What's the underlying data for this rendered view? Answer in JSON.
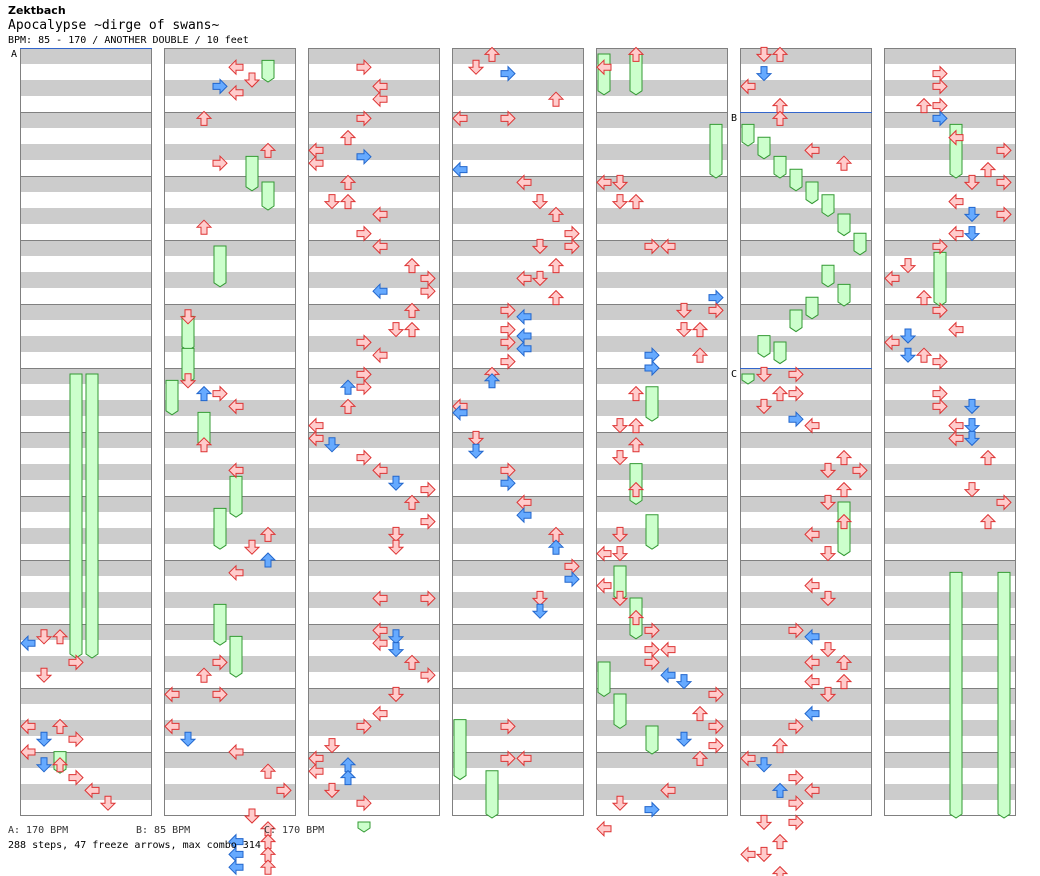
{
  "header": {
    "artist": "Zektbach",
    "title": "Apocalypse ~dirge of swans~",
    "info": "BPM: 85 - 170 / ANOTHER DOUBLE / 10 feet"
  },
  "bpm_changes": [
    {
      "marker": "A",
      "column": 0,
      "measure": 0,
      "bpm": 170
    },
    {
      "marker": "B",
      "column": 5,
      "measure": 1,
      "bpm": 85
    },
    {
      "marker": "C",
      "column": 5,
      "measure": 5,
      "bpm": 170
    }
  ],
  "footer": {
    "bpms": [
      "A: 170 BPM",
      "B: 85 BPM",
      "C: 170 BPM"
    ],
    "stats": "288 steps, 47 freeze arrows, max combo 314"
  },
  "colors": {
    "stripe": "#cccccc",
    "measure_line": "#808080",
    "red_arrow": "#ffcccc",
    "red_outline": "#dd3333",
    "blue_arrow": "#66aaff",
    "blue_outline": "#2266cc",
    "freeze_fill": "#ccffcc",
    "freeze_outline": "#339933",
    "bpm_line": "#3366cc"
  },
  "chart": {
    "columns": 7,
    "measures_per_column": 12,
    "lanes": 8,
    "freezes": [
      [
        3,
        5.0,
        9.5
      ],
      [
        4,
        5.0,
        9.5
      ],
      [
        2,
        10.9,
        11.3
      ],
      [
        6,
        0.1,
        0.5
      ],
      [
        5,
        1.6,
        2.2
      ],
      [
        6,
        2.0,
        2.5
      ],
      [
        3,
        3.0,
        3.7
      ],
      [
        1,
        4.1,
        4.7
      ],
      [
        1,
        4.6,
        5.2
      ],
      [
        0,
        5.1,
        5.7
      ],
      [
        2,
        5.6,
        6.2
      ],
      [
        4,
        6.6,
        7.3
      ],
      [
        3,
        7.1,
        7.8
      ],
      [
        3,
        8.6,
        9.3
      ],
      [
        4,
        9.1,
        9.8
      ],
      [
        3,
        12.0,
        12.2
      ],
      [
        0,
        10.4,
        11.4
      ],
      [
        2,
        11.2,
        12.0
      ],
      [
        0,
        0.0,
        0.7
      ],
      [
        2,
        0.0,
        0.7
      ],
      [
        7,
        1.1,
        2.0
      ],
      [
        3,
        5.2,
        5.8
      ],
      [
        2,
        6.4,
        7.1
      ],
      [
        3,
        7.2,
        7.8
      ],
      [
        1,
        8.0,
        8.6
      ],
      [
        2,
        8.5,
        9.2
      ],
      [
        0,
        9.5,
        10.1
      ],
      [
        1,
        10.0,
        10.6
      ],
      [
        3,
        10.5,
        11.0
      ],
      [
        0,
        1.1,
        1.5
      ],
      [
        1,
        1.3,
        1.7
      ],
      [
        2,
        1.6,
        2.0
      ],
      [
        3,
        1.8,
        2.2
      ],
      [
        4,
        2.0,
        2.4
      ],
      [
        5,
        2.2,
        2.6
      ],
      [
        6,
        2.5,
        2.9
      ],
      [
        7,
        2.8,
        3.2
      ],
      [
        5,
        3.3,
        3.7
      ],
      [
        6,
        3.6,
        4.0
      ],
      [
        4,
        3.8,
        4.2
      ],
      [
        3,
        4.0,
        4.4
      ],
      [
        1,
        4.4,
        4.8
      ],
      [
        2,
        4.5,
        4.9
      ],
      [
        0,
        5.0,
        5.2
      ],
      [
        6,
        7.0,
        7.9
      ],
      [
        4,
        1.1,
        2.0
      ],
      [
        3,
        3.1,
        4.0
      ],
      [
        4,
        8.1,
        12.0
      ],
      [
        7,
        8.1,
        12.0
      ]
    ],
    "arrows": [
      [
        1,
        9.2,
        "r"
      ],
      [
        0,
        9.3,
        "b"
      ],
      [
        2,
        9.2,
        "r"
      ],
      [
        3,
        9.6,
        "r"
      ],
      [
        1,
        9.8,
        "r"
      ],
      [
        0,
        10.6,
        "r"
      ],
      [
        2,
        10.6,
        "r"
      ],
      [
        1,
        10.8,
        "b"
      ],
      [
        3,
        10.8,
        "r"
      ],
      [
        0,
        11.0,
        "r"
      ],
      [
        1,
        11.2,
        "b"
      ],
      [
        2,
        11.2,
        "r"
      ],
      [
        3,
        11.4,
        "r"
      ],
      [
        4,
        11.6,
        "r"
      ],
      [
        5,
        11.8,
        "r"
      ],
      [
        4,
        0.3,
        "r"
      ],
      [
        3,
        0.6,
        "b"
      ],
      [
        4,
        0.7,
        "r"
      ],
      [
        5,
        0.5,
        "r"
      ],
      [
        2,
        1.1,
        "r"
      ],
      [
        6,
        1.6,
        "r"
      ],
      [
        3,
        1.8,
        "r"
      ],
      [
        2,
        2.8,
        "r"
      ],
      [
        1,
        4.2,
        "r"
      ],
      [
        1,
        5.2,
        "r"
      ],
      [
        2,
        5.4,
        "b"
      ],
      [
        3,
        5.4,
        "r"
      ],
      [
        4,
        5.6,
        "r"
      ],
      [
        2,
        6.2,
        "r"
      ],
      [
        4,
        6.6,
        "r"
      ],
      [
        6,
        7.6,
        "r"
      ],
      [
        5,
        7.8,
        "r"
      ],
      [
        6,
        8.0,
        "b"
      ],
      [
        4,
        8.2,
        "r"
      ],
      [
        3,
        9.6,
        "r"
      ],
      [
        2,
        9.8,
        "r"
      ],
      [
        0,
        10.1,
        "r"
      ],
      [
        3,
        10.1,
        "r"
      ],
      [
        0,
        10.6,
        "r"
      ],
      [
        1,
        10.8,
        "b"
      ],
      [
        4,
        11.0,
        "r"
      ],
      [
        6,
        11.3,
        "r"
      ],
      [
        7,
        11.6,
        "r"
      ],
      [
        5,
        12.0,
        "r"
      ],
      [
        6,
        12.2,
        "r"
      ],
      [
        4,
        12.4,
        "b"
      ],
      [
        6,
        12.4,
        "r"
      ],
      [
        4,
        12.6,
        "b"
      ],
      [
        6,
        12.6,
        "r"
      ],
      [
        4,
        12.8,
        "b"
      ],
      [
        6,
        12.8,
        "r"
      ],
      [
        3,
        0.3,
        "r"
      ],
      [
        4,
        0.6,
        "r"
      ],
      [
        4,
        0.8,
        "r"
      ],
      [
        3,
        1.1,
        "r"
      ],
      [
        2,
        1.4,
        "r"
      ],
      [
        0,
        1.6,
        "r"
      ],
      [
        3,
        1.7,
        "b"
      ],
      [
        0,
        1.8,
        "r"
      ],
      [
        2,
        2.1,
        "r"
      ],
      [
        1,
        2.4,
        "r"
      ],
      [
        2,
        2.4,
        "r"
      ],
      [
        4,
        2.6,
        "r"
      ],
      [
        3,
        2.9,
        "r"
      ],
      [
        4,
        3.1,
        "r"
      ],
      [
        6,
        3.4,
        "r"
      ],
      [
        7,
        3.6,
        "r"
      ],
      [
        4,
        3.8,
        "b"
      ],
      [
        7,
        3.8,
        "r"
      ],
      [
        6,
        4.1,
        "r"
      ],
      [
        5,
        4.4,
        "r"
      ],
      [
        6,
        4.4,
        "r"
      ],
      [
        3,
        4.6,
        "r"
      ],
      [
        4,
        4.8,
        "r"
      ],
      [
        3,
        5.1,
        "r"
      ],
      [
        2,
        5.3,
        "b"
      ],
      [
        3,
        5.3,
        "r"
      ],
      [
        2,
        5.6,
        "r"
      ],
      [
        0,
        5.9,
        "r"
      ],
      [
        0,
        6.1,
        "r"
      ],
      [
        1,
        6.2,
        "b"
      ],
      [
        3,
        6.4,
        "r"
      ],
      [
        4,
        6.6,
        "r"
      ],
      [
        5,
        6.8,
        "b"
      ],
      [
        7,
        6.9,
        "r"
      ],
      [
        6,
        7.1,
        "r"
      ],
      [
        7,
        7.4,
        "r"
      ],
      [
        5,
        7.6,
        "r"
      ],
      [
        5,
        7.8,
        "r"
      ],
      [
        7,
        8.6,
        "r"
      ],
      [
        4,
        8.6,
        "r"
      ],
      [
        4,
        9.1,
        "r"
      ],
      [
        5,
        9.2,
        "b"
      ],
      [
        4,
        9.3,
        "r"
      ],
      [
        5,
        9.4,
        "b"
      ],
      [
        6,
        9.6,
        "r"
      ],
      [
        7,
        9.8,
        "r"
      ],
      [
        5,
        10.1,
        "r"
      ],
      [
        4,
        10.4,
        "r"
      ],
      [
        3,
        10.6,
        "r"
      ],
      [
        1,
        10.9,
        "r"
      ],
      [
        0,
        11.1,
        "r"
      ],
      [
        2,
        11.2,
        "b"
      ],
      [
        0,
        11.3,
        "r"
      ],
      [
        2,
        11.4,
        "b"
      ],
      [
        1,
        11.6,
        "r"
      ],
      [
        3,
        11.8,
        "r"
      ],
      [
        2,
        0.1,
        "r"
      ],
      [
        1,
        0.3,
        "r"
      ],
      [
        3,
        0.4,
        "b"
      ],
      [
        6,
        0.8,
        "r"
      ],
      [
        4,
        2.1,
        "r"
      ],
      [
        5,
        2.4,
        "r"
      ],
      [
        6,
        2.6,
        "r"
      ],
      [
        7,
        2.9,
        "r"
      ],
      [
        5,
        3.1,
        "r"
      ],
      [
        7,
        3.1,
        "r"
      ],
      [
        6,
        3.4,
        "r"
      ],
      [
        4,
        3.6,
        "r"
      ],
      [
        5,
        3.6,
        "r"
      ],
      [
        6,
        3.9,
        "r"
      ],
      [
        3,
        4.1,
        "r"
      ],
      [
        4,
        4.2,
        "b"
      ],
      [
        3,
        4.4,
        "r"
      ],
      [
        4,
        4.5,
        "b"
      ],
      [
        3,
        4.6,
        "r"
      ],
      [
        4,
        4.7,
        "b"
      ],
      [
        3,
        4.9,
        "r"
      ],
      [
        2,
        5.1,
        "r"
      ],
      [
        2,
        5.2,
        "b"
      ],
      [
        0,
        5.6,
        "r"
      ],
      [
        0,
        5.7,
        "b"
      ],
      [
        1,
        6.1,
        "r"
      ],
      [
        1,
        6.3,
        "b"
      ],
      [
        3,
        6.6,
        "r"
      ],
      [
        3,
        6.8,
        "b"
      ],
      [
        4,
        7.1,
        "r"
      ],
      [
        4,
        7.3,
        "b"
      ],
      [
        6,
        7.6,
        "r"
      ],
      [
        6,
        7.8,
        "b"
      ],
      [
        7,
        8.1,
        "r"
      ],
      [
        7,
        8.3,
        "b"
      ],
      [
        5,
        8.6,
        "r"
      ],
      [
        5,
        8.8,
        "b"
      ],
      [
        3,
        10.6,
        "r"
      ],
      [
        3,
        11.1,
        "r"
      ],
      [
        4,
        11.1,
        "r"
      ],
      [
        0,
        1.1,
        "r"
      ],
      [
        3,
        1.1,
        "r"
      ],
      [
        0,
        1.9,
        "b"
      ],
      [
        0,
        2.1,
        "r"
      ],
      [
        1,
        2.1,
        "r"
      ],
      [
        1,
        2.4,
        "r"
      ],
      [
        2,
        2.4,
        "r"
      ],
      [
        3,
        3.1,
        "r"
      ],
      [
        4,
        3.1,
        "r"
      ],
      [
        7,
        3.9,
        "b"
      ],
      [
        5,
        4.1,
        "r"
      ],
      [
        7,
        4.1,
        "r"
      ],
      [
        5,
        4.4,
        "r"
      ],
      [
        6,
        4.4,
        "r"
      ],
      [
        6,
        4.8,
        "r"
      ],
      [
        3,
        4.8,
        "b"
      ],
      [
        3,
        5.0,
        "b"
      ],
      [
        2,
        5.4,
        "r"
      ],
      [
        1,
        5.9,
        "r"
      ],
      [
        2,
        5.9,
        "r"
      ],
      [
        2,
        6.2,
        "r"
      ],
      [
        1,
        6.4,
        "r"
      ],
      [
        2,
        6.9,
        "r"
      ],
      [
        1,
        7.6,
        "r"
      ],
      [
        0,
        7.9,
        "r"
      ],
      [
        1,
        7.9,
        "r"
      ],
      [
        0,
        8.4,
        "r"
      ],
      [
        1,
        8.6,
        "r"
      ],
      [
        2,
        8.9,
        "r"
      ],
      [
        3,
        9.1,
        "r"
      ],
      [
        3,
        9.4,
        "r"
      ],
      [
        4,
        9.4,
        "r"
      ],
      [
        3,
        9.6,
        "r"
      ],
      [
        4,
        9.8,
        "b"
      ],
      [
        5,
        9.9,
        "b"
      ],
      [
        7,
        10.1,
        "r"
      ],
      [
        6,
        10.4,
        "r"
      ],
      [
        7,
        10.6,
        "r"
      ],
      [
        5,
        10.8,
        "b"
      ],
      [
        7,
        10.9,
        "r"
      ],
      [
        6,
        11.1,
        "r"
      ],
      [
        4,
        11.6,
        "r"
      ],
      [
        3,
        11.9,
        "b"
      ],
      [
        1,
        11.8,
        "r"
      ],
      [
        0,
        12.2,
        "r"
      ],
      [
        2,
        0.1,
        "r"
      ],
      [
        0,
        0.3,
        "r"
      ],
      [
        1,
        0.4,
        "b"
      ],
      [
        0,
        0.6,
        "r"
      ],
      [
        2,
        0.9,
        "r"
      ],
      [
        2,
        1.1,
        "r"
      ],
      [
        4,
        1.6,
        "r"
      ],
      [
        6,
        1.8,
        "r"
      ],
      [
        1,
        5.1,
        "r"
      ],
      [
        3,
        5.1,
        "r"
      ],
      [
        2,
        5.4,
        "r"
      ],
      [
        3,
        5.4,
        "r"
      ],
      [
        1,
        5.6,
        "r"
      ],
      [
        3,
        5.8,
        "b"
      ],
      [
        4,
        5.9,
        "r"
      ],
      [
        6,
        6.4,
        "r"
      ],
      [
        5,
        6.6,
        "r"
      ],
      [
        7,
        6.6,
        "r"
      ],
      [
        6,
        6.9,
        "r"
      ],
      [
        5,
        7.1,
        "r"
      ],
      [
        6,
        7.4,
        "r"
      ],
      [
        4,
        7.6,
        "r"
      ],
      [
        5,
        7.9,
        "r"
      ],
      [
        4,
        8.4,
        "r"
      ],
      [
        5,
        8.6,
        "r"
      ],
      [
        3,
        9.1,
        "r"
      ],
      [
        4,
        9.2,
        "b"
      ],
      [
        5,
        9.4,
        "r"
      ],
      [
        4,
        9.6,
        "r"
      ],
      [
        6,
        9.6,
        "r"
      ],
      [
        4,
        9.9,
        "r"
      ],
      [
        6,
        9.9,
        "r"
      ],
      [
        5,
        10.1,
        "r"
      ],
      [
        4,
        10.4,
        "b"
      ],
      [
        3,
        10.6,
        "r"
      ],
      [
        2,
        10.9,
        "r"
      ],
      [
        0,
        11.1,
        "r"
      ],
      [
        1,
        11.2,
        "b"
      ],
      [
        3,
        11.4,
        "r"
      ],
      [
        2,
        11.6,
        "b"
      ],
      [
        4,
        11.6,
        "r"
      ],
      [
        3,
        11.8,
        "r"
      ],
      [
        1,
        12.1,
        "r"
      ],
      [
        3,
        12.1,
        "r"
      ],
      [
        2,
        12.4,
        "r"
      ],
      [
        0,
        12.6,
        "r"
      ],
      [
        1,
        12.6,
        "r"
      ],
      [
        2,
        12.9,
        "r"
      ],
      [
        1,
        0.1,
        "r"
      ],
      [
        2,
        0.1,
        "r"
      ],
      [
        3,
        0.4,
        "r"
      ],
      [
        3,
        0.6,
        "r"
      ],
      [
        2,
        0.9,
        "r"
      ],
      [
        3,
        0.9,
        "r"
      ],
      [
        3,
        1.1,
        "b"
      ],
      [
        4,
        1.4,
        "r"
      ],
      [
        6,
        1.9,
        "r"
      ],
      [
        7,
        1.6,
        "r"
      ],
      [
        5,
        2.1,
        "r"
      ],
      [
        7,
        2.1,
        "r"
      ],
      [
        4,
        2.4,
        "r"
      ],
      [
        5,
        2.6,
        "b"
      ],
      [
        7,
        2.6,
        "r"
      ],
      [
        5,
        2.9,
        "b"
      ],
      [
        4,
        2.9,
        "r"
      ],
      [
        3,
        3.1,
        "r"
      ],
      [
        1,
        3.4,
        "r"
      ],
      [
        0,
        3.6,
        "r"
      ],
      [
        2,
        3.9,
        "r"
      ],
      [
        3,
        4.1,
        "r"
      ],
      [
        4,
        4.4,
        "r"
      ],
      [
        1,
        4.5,
        "b"
      ],
      [
        0,
        4.6,
        "r"
      ],
      [
        2,
        4.8,
        "r"
      ],
      [
        1,
        4.8,
        "b"
      ],
      [
        3,
        4.9,
        "r"
      ],
      [
        3,
        5.4,
        "r"
      ],
      [
        5,
        5.6,
        "b"
      ],
      [
        3,
        5.6,
        "r"
      ],
      [
        5,
        5.9,
        "b"
      ],
      [
        4,
        5.9,
        "r"
      ],
      [
        5,
        6.1,
        "b"
      ],
      [
        4,
        6.1,
        "r"
      ],
      [
        6,
        6.4,
        "r"
      ],
      [
        5,
        6.9,
        "r"
      ],
      [
        7,
        7.1,
        "r"
      ],
      [
        6,
        7.4,
        "r"
      ]
    ]
  }
}
